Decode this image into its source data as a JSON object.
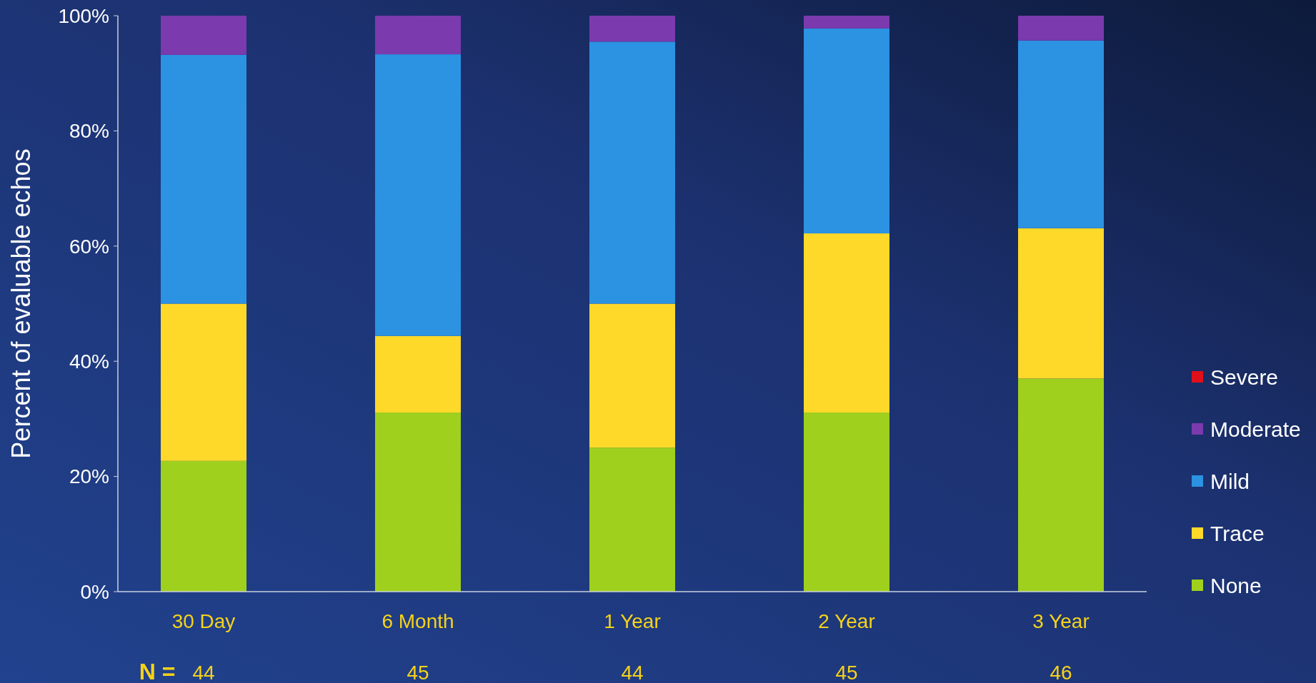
{
  "chart_data": {
    "type": "bar",
    "stacked": true,
    "ylabel": "Percent of evaluable echos",
    "categories": [
      "30 Day",
      "6 Month",
      "1 Year",
      "2 Year",
      "3 Year"
    ],
    "series": [
      {
        "name": "None",
        "color": "#9fd01e",
        "values": [
          22.7,
          31.1,
          25.0,
          31.1,
          37.0
        ]
      },
      {
        "name": "Trace",
        "color": "#ffd92a",
        "values": [
          27.3,
          13.3,
          25.0,
          31.1,
          26.1
        ]
      },
      {
        "name": "Mild",
        "color": "#2c92e2",
        "values": [
          43.2,
          48.9,
          45.5,
          35.6,
          32.6
        ]
      },
      {
        "name": "Moderate",
        "color": "#7b3aae",
        "values": [
          6.8,
          6.7,
          4.5,
          2.2,
          4.3
        ]
      },
      {
        "name": "Severe",
        "color": "#e0101a",
        "values": [
          0,
          0,
          0,
          0,
          0
        ]
      }
    ],
    "ylim": [
      0,
      100
    ],
    "yticks": [
      {
        "value": 0,
        "label": "0%"
      },
      {
        "value": 20,
        "label": "20%"
      },
      {
        "value": 40,
        "label": "40%"
      },
      {
        "value": 60,
        "label": "60%"
      },
      {
        "value": 80,
        "label": "80%"
      },
      {
        "value": 100,
        "label": "100%"
      }
    ],
    "grid": false,
    "legend": "right",
    "annotations": [
      "N =",
      "44",
      "45",
      "44",
      "45",
      "46"
    ]
  }
}
